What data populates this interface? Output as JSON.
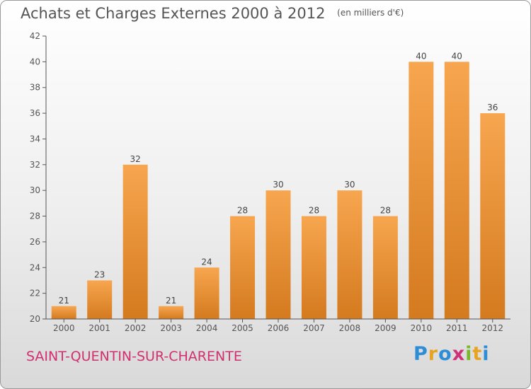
{
  "title": "Achats et Charges Externes 2000 à 2012",
  "unit": "(en milliers d'€)",
  "city": "SAINT-QUENTIN-SUR-CHARENTE",
  "logo": {
    "letters": [
      "P",
      "r",
      "o",
      "x",
      "i",
      "t",
      "i"
    ],
    "colors": [
      "#2d8dd6",
      "#e8a321",
      "#2d8dd6",
      "#d0307a",
      "#7ab82f",
      "#e8a321",
      "#2d8dd6"
    ]
  },
  "colors": {
    "bar_light": "#f7a64f",
    "bar_dark": "#d47a1f",
    "axis": "#555555"
  },
  "chart_data": {
    "type": "bar",
    "categories": [
      "2000",
      "2001",
      "2002",
      "2003",
      "2004",
      "2005",
      "2006",
      "2007",
      "2008",
      "2009",
      "2010",
      "2011",
      "2012"
    ],
    "values": [
      21,
      23,
      32,
      21,
      24,
      28,
      30,
      28,
      30,
      28,
      40,
      40,
      36
    ],
    "ylim": [
      20,
      42
    ],
    "yticks": [
      20,
      22,
      24,
      26,
      28,
      30,
      32,
      34,
      36,
      38,
      40,
      42
    ],
    "grid": false,
    "title": "Achats et Charges Externes 2000 à 2012",
    "xlabel": "",
    "ylabel": ""
  }
}
